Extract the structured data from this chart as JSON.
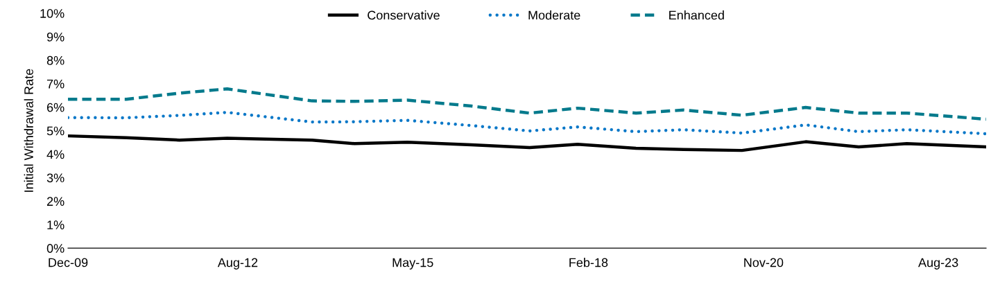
{
  "chart_data": {
    "type": "line",
    "ylabel": "Initial Withdrawal Rate",
    "x": [
      "2009-12",
      "2010-11",
      "2011-09",
      "2012-06",
      "2013-10",
      "2014-06",
      "2015-04",
      "2016-04",
      "2017-03",
      "2017-12",
      "2018-11",
      "2019-08",
      "2020-07",
      "2021-07",
      "2022-05",
      "2023-02",
      "2024-05"
    ],
    "series": [
      {
        "name": "Conservative",
        "color": "#000000",
        "line_style": "solid",
        "values": [
          4.78,
          4.7,
          4.6,
          4.68,
          4.6,
          4.45,
          4.51,
          4.4,
          4.28,
          4.42,
          4.25,
          4.2,
          4.16,
          4.53,
          4.31,
          4.45,
          4.31
        ]
      },
      {
        "name": "Moderate",
        "color": "#0a78c8",
        "line_style": "dotted",
        "values": [
          5.56,
          5.55,
          5.65,
          5.78,
          5.37,
          5.38,
          5.44,
          5.22,
          4.99,
          5.16,
          4.96,
          5.04,
          4.9,
          5.25,
          4.96,
          5.04,
          4.87
        ]
      },
      {
        "name": "Enhanced",
        "color": "#047a8c",
        "line_style": "dashed",
        "values": [
          6.34,
          6.34,
          6.6,
          6.78,
          6.27,
          6.25,
          6.3,
          6.05,
          5.75,
          5.96,
          5.75,
          5.88,
          5.66,
          5.99,
          5.75,
          5.75,
          5.49
        ]
      }
    ],
    "xlim": [
      "2009-12",
      "2024-05"
    ],
    "xticks": [
      {
        "value": "2009-12",
        "label": "Dec-09"
      },
      {
        "value": "2012-08",
        "label": "Aug-12"
      },
      {
        "value": "2015-05",
        "label": "May-15"
      },
      {
        "value": "2018-02",
        "label": "Feb-18"
      },
      {
        "value": "2020-11",
        "label": "Nov-20"
      },
      {
        "value": "2023-08",
        "label": "Aug-23"
      }
    ],
    "ylim": [
      0,
      10
    ],
    "yticks": [
      {
        "value": 0,
        "label": "0%"
      },
      {
        "value": 1,
        "label": "1%"
      },
      {
        "value": 2,
        "label": "2%"
      },
      {
        "value": 3,
        "label": "3%"
      },
      {
        "value": 4,
        "label": "4%"
      },
      {
        "value": 5,
        "label": "5%"
      },
      {
        "value": 6,
        "label": "6%"
      },
      {
        "value": 7,
        "label": "7%"
      },
      {
        "value": 8,
        "label": "8%"
      },
      {
        "value": 9,
        "label": "9%"
      },
      {
        "value": 10,
        "label": "10%"
      }
    ],
    "grid": false,
    "legend": "top",
    "marker": "none"
  }
}
